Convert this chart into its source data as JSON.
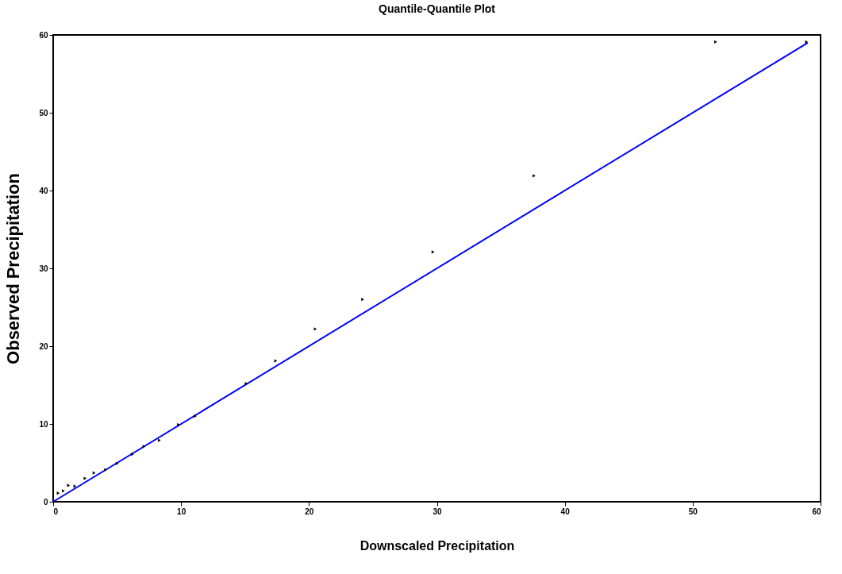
{
  "chart_data": {
    "type": "scatter",
    "title": "Quantile-Quantile Plot",
    "xlabel": "Downscaled Precipitation",
    "ylabel": "Observed Precipitation",
    "xlim": [
      0,
      60
    ],
    "ylim": [
      0,
      60
    ],
    "xticks": [
      0,
      10,
      20,
      30,
      40,
      50,
      60
    ],
    "yticks": [
      0,
      10,
      20,
      30,
      40,
      50,
      60
    ],
    "grid": false,
    "series": [
      {
        "color": "#000000",
        "marker": "triangle",
        "x": [
          0.4,
          0.8,
          1.2,
          1.7,
          2.5,
          3.2,
          4.1,
          5.0,
          6.2,
          7.1,
          8.3,
          9.8,
          11.1,
          15.1,
          17.4,
          20.5,
          24.2,
          29.7,
          37.6,
          51.8,
          58.9
        ],
        "values": [
          1.1,
          1.4,
          2.1,
          2.0,
          3.0,
          3.7,
          4.1,
          4.9,
          6.1,
          7.1,
          7.9,
          9.9,
          11.0,
          15.2,
          18.1,
          22.2,
          26.0,
          32.1,
          41.9,
          59.1,
          59.1
        ]
      },
      {
        "type": "line",
        "color": "#0000ff",
        "line_style": "solid",
        "x": [
          0,
          59
        ],
        "values": [
          0,
          59
        ]
      }
    ]
  }
}
